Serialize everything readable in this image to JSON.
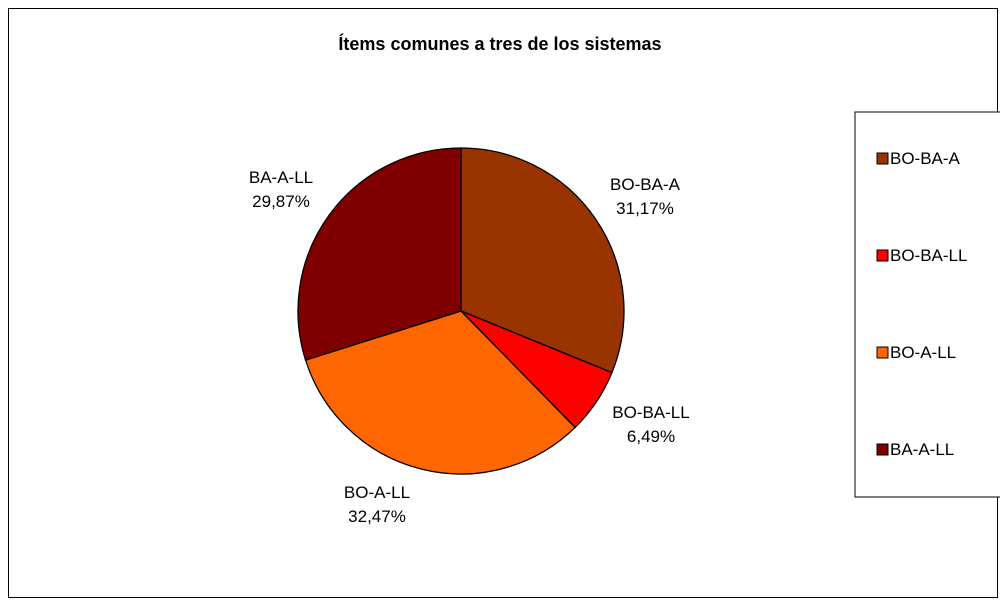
{
  "chart_data": {
    "type": "pie",
    "title": "Ítems comunes a tres de los sistemas",
    "slices": [
      {
        "name": "BO-BA-A",
        "value": 31.17,
        "label": "31,17%",
        "color": "#993300"
      },
      {
        "name": "BO-BA-LL",
        "value": 6.49,
        "label": "6,49%",
        "color": "#FF0000"
      },
      {
        "name": "BO-A-LL",
        "value": 32.47,
        "label": "32,47%",
        "color": "#FF6600"
      },
      {
        "name": "BA-A-LL",
        "value": 29.87,
        "label": "29,87%",
        "color": "#800000"
      }
    ],
    "legend": {
      "position": "right",
      "items": [
        "BO-BA-A",
        "BO-BA-LL",
        "BO-A-LL",
        "BA-A-LL"
      ]
    },
    "start_angle": "12 o'clock",
    "direction": "clockwise"
  }
}
